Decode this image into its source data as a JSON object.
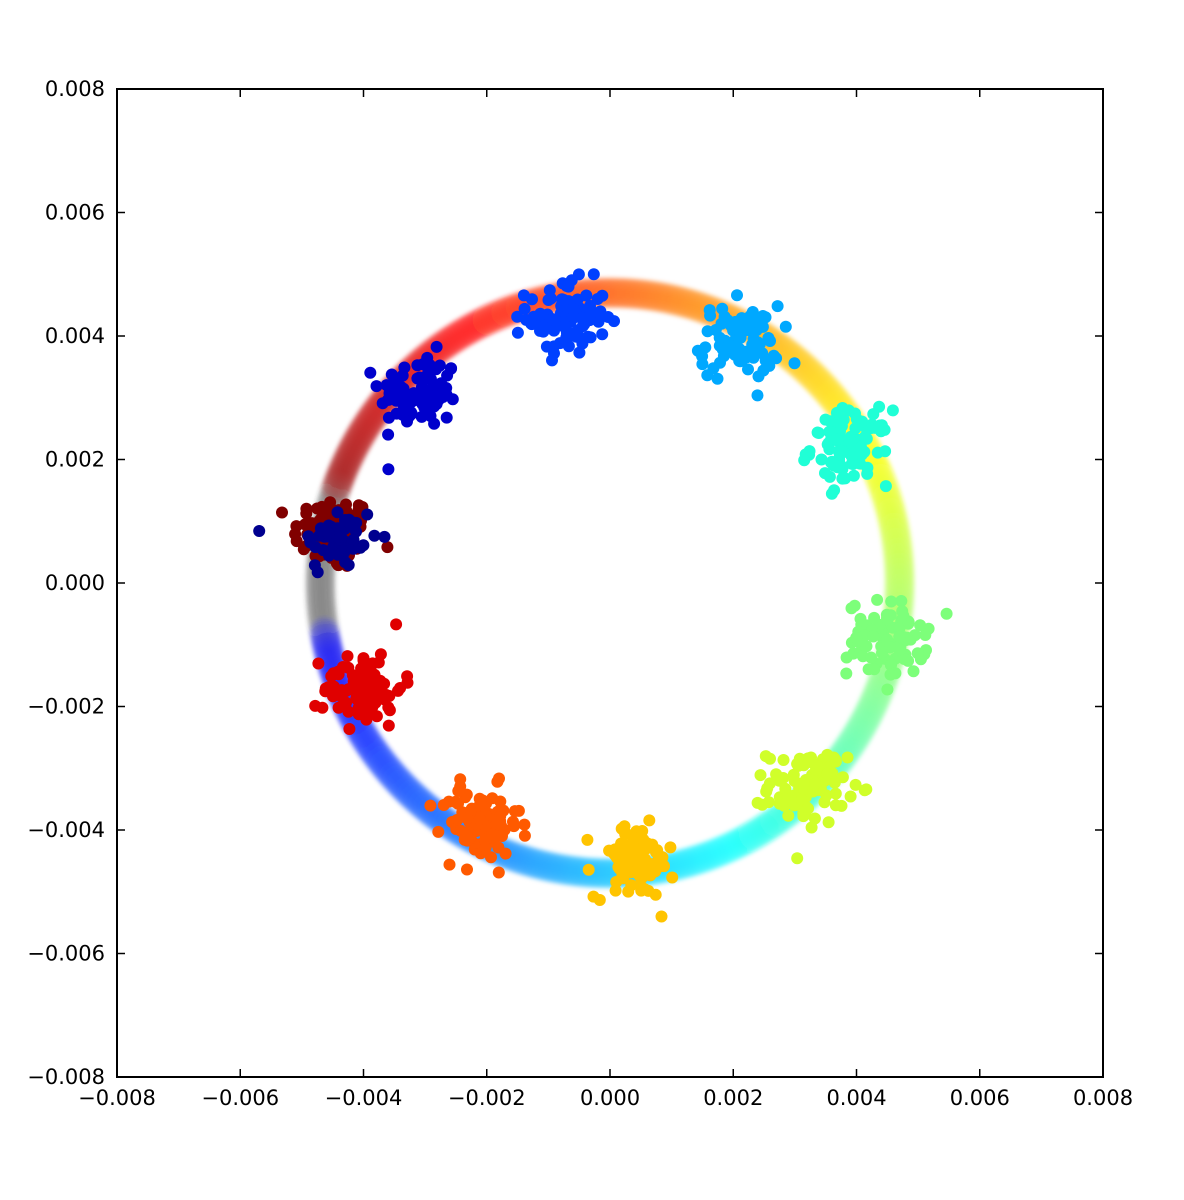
{
  "chart_data": {
    "type": "scatter",
    "title": "",
    "xlabel": "",
    "ylabel": "",
    "xlim": [
      -0.008,
      0.008
    ],
    "ylim": [
      -0.008,
      0.008
    ],
    "grid": false,
    "x_ticks": [
      "−0.008",
      "−0.006",
      "−0.004",
      "−0.002",
      "0.000",
      "0.002",
      "0.004",
      "0.006",
      "0.008"
    ],
    "y_ticks": [
      "0.008",
      "0.006",
      "0.004",
      "0.002",
      "0.000",
      "−0.002",
      "−0.004",
      "−0.006",
      "−0.008"
    ],
    "x_tick_values": [
      -0.008,
      -0.006,
      -0.004,
      -0.002,
      0.0,
      0.002,
      0.004,
      0.006,
      0.008
    ],
    "y_tick_values": [
      0.008,
      0.006,
      0.004,
      0.002,
      0.0,
      -0.002,
      -0.004,
      -0.006,
      -0.008
    ],
    "background_ring": {
      "description_shape": "ring",
      "center": [
        0.0,
        0.0
      ],
      "radius": 0.0047,
      "colormap": "jet",
      "opacity": "faint"
    },
    "series": [
      {
        "color": "#800000",
        "center": [
          -0.0045,
          0.0008
        ],
        "count": 90
      },
      {
        "color": "#00008f",
        "center": [
          -0.0044,
          0.0007
        ],
        "count": 50
      },
      {
        "color": "#0000cc",
        "center": [
          -0.0031,
          0.0031
        ],
        "count": 90
      },
      {
        "color": "#0040ff",
        "center": [
          -0.0007,
          0.0043
        ],
        "count": 90
      },
      {
        "color": "#00a8ff",
        "center": [
          0.0021,
          0.0039
        ],
        "count": 90
      },
      {
        "color": "#20ffd6",
        "center": [
          0.0039,
          0.0022
        ],
        "count": 90
      },
      {
        "color": "#7dff7a",
        "center": [
          0.0045,
          -0.0009
        ],
        "count": 90
      },
      {
        "color": "#d0ff2a",
        "center": [
          0.0032,
          -0.0033
        ],
        "count": 90
      },
      {
        "color": "#ffc400",
        "center": [
          0.0004,
          -0.0045
        ],
        "count": 90
      },
      {
        "color": "#ff5a00",
        "center": [
          -0.0021,
          -0.0039
        ],
        "count": 90
      },
      {
        "color": "#e00000",
        "center": [
          -0.004,
          -0.0017
        ],
        "count": 90
      }
    ]
  }
}
